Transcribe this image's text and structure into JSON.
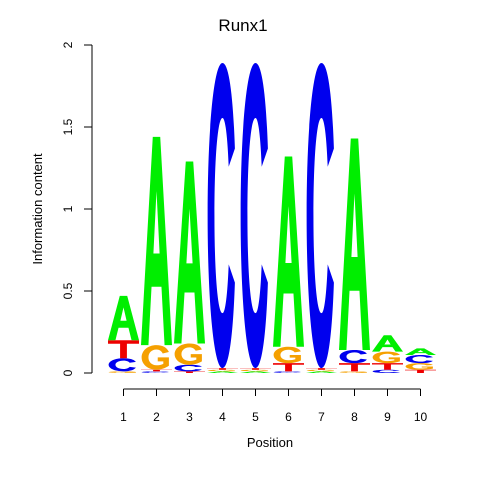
{
  "chart_data": {
    "type": "sequence-logo",
    "title": "Runx1",
    "xlabel": "Position",
    "ylabel": "Information content",
    "ylim": [
      0,
      2
    ],
    "y_ticks": [
      0,
      0.5,
      1,
      1.5,
      2
    ],
    "y_tick_labels": [
      "0",
      "0.5",
      "1",
      "1.5",
      "2"
    ],
    "positions": [
      "1",
      "2",
      "3",
      "4",
      "5",
      "6",
      "7",
      "8",
      "9",
      "10"
    ],
    "colors": {
      "A": "#00ee00",
      "C": "#0000ee",
      "G": "#f5a000",
      "T": "#ee0000"
    },
    "stacks": [
      [
        {
          "letter": "G",
          "height": 0.01
        },
        {
          "letter": "C",
          "height": 0.08
        },
        {
          "letter": "T",
          "height": 0.11
        },
        {
          "letter": "A",
          "height": 0.27
        }
      ],
      [
        {
          "letter": "C",
          "height": 0.01
        },
        {
          "letter": "T",
          "height": 0.01
        },
        {
          "letter": "G",
          "height": 0.15
        },
        {
          "letter": "A",
          "height": 1.27
        }
      ],
      [
        {
          "letter": "T",
          "height": 0.01
        },
        {
          "letter": "C",
          "height": 0.04
        },
        {
          "letter": "G",
          "height": 0.13
        },
        {
          "letter": "A",
          "height": 1.11
        }
      ],
      [
        {
          "letter": "A",
          "height": 0.01
        },
        {
          "letter": "G",
          "height": 0.01
        },
        {
          "letter": "T",
          "height": 0.01
        },
        {
          "letter": "C",
          "height": 1.86
        }
      ],
      [
        {
          "letter": "A",
          "height": 0.01
        },
        {
          "letter": "G",
          "height": 0.01
        },
        {
          "letter": "T",
          "height": 0.01
        },
        {
          "letter": "C",
          "height": 1.86
        }
      ],
      [
        {
          "letter": "C",
          "height": 0.01
        },
        {
          "letter": "T",
          "height": 0.05
        },
        {
          "letter": "G",
          "height": 0.1
        },
        {
          "letter": "A",
          "height": 1.16
        }
      ],
      [
        {
          "letter": "A",
          "height": 0.01
        },
        {
          "letter": "G",
          "height": 0.01
        },
        {
          "letter": "T",
          "height": 0.01
        },
        {
          "letter": "C",
          "height": 1.86
        }
      ],
      [
        {
          "letter": "G",
          "height": 0.01
        },
        {
          "letter": "T",
          "height": 0.05
        },
        {
          "letter": "C",
          "height": 0.08
        },
        {
          "letter": "A",
          "height": 1.29
        }
      ],
      [
        {
          "letter": "C",
          "height": 0.02
        },
        {
          "letter": "T",
          "height": 0.04
        },
        {
          "letter": "G",
          "height": 0.07
        },
        {
          "letter": "A",
          "height": 0.1
        }
      ],
      [
        {
          "letter": "T",
          "height": 0.02
        },
        {
          "letter": "G",
          "height": 0.04
        },
        {
          "letter": "C",
          "height": 0.05
        },
        {
          "letter": "A",
          "height": 0.04
        }
      ]
    ]
  }
}
